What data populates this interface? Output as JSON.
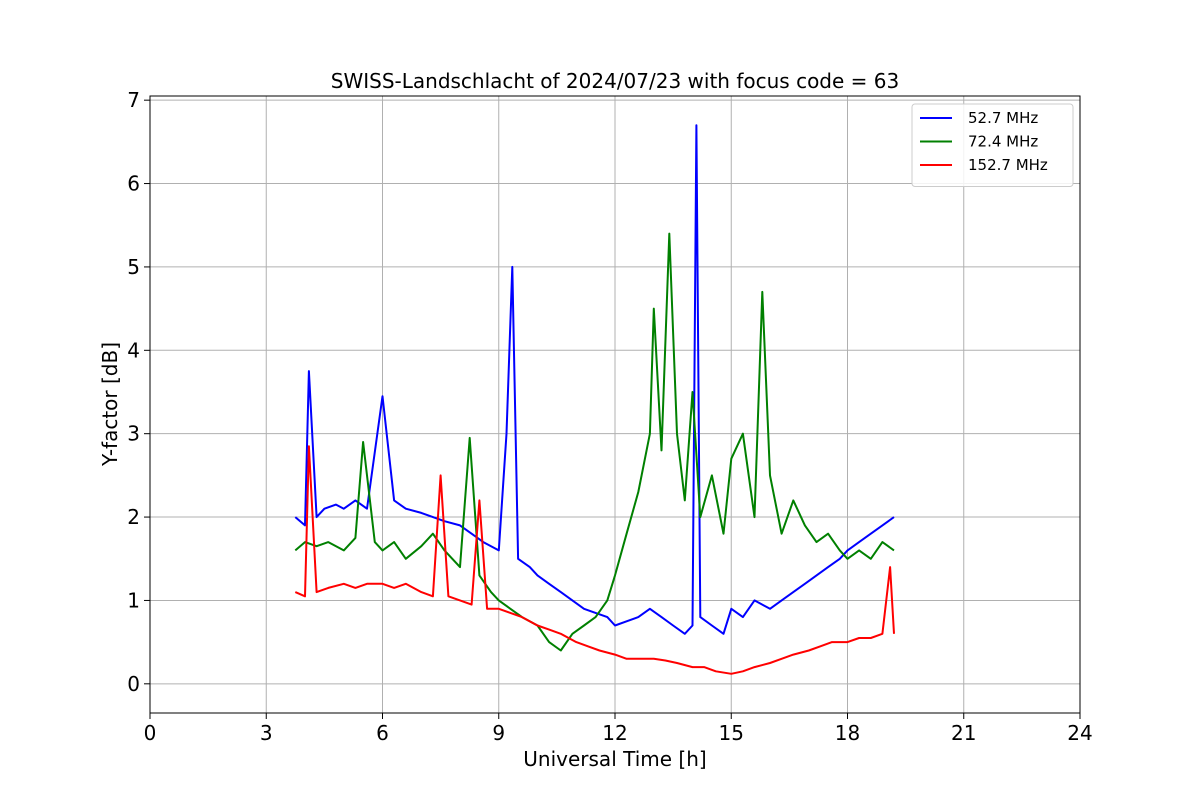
{
  "chart_data": {
    "type": "line",
    "title": "SWISS-Landschlacht of 2024/07/23 with focus code = 63",
    "xlabel": "Universal Time [h]",
    "ylabel": "Y-factor [dB]",
    "xlim": [
      0,
      24
    ],
    "ylim": [
      -0.35,
      7.05
    ],
    "xticks": [
      0,
      3,
      6,
      9,
      12,
      15,
      18,
      21,
      24
    ],
    "yticks": [
      0,
      1,
      2,
      3,
      4,
      5,
      6,
      7
    ],
    "grid": true,
    "legend_position": "top-right",
    "series": [
      {
        "name": "52.7 MHz",
        "color": "#0000ff",
        "x": [
          3.75,
          4.0,
          4.1,
          4.3,
          4.5,
          4.8,
          5.0,
          5.3,
          5.6,
          6.0,
          6.3,
          6.6,
          7.0,
          7.3,
          7.6,
          8.0,
          8.3,
          8.6,
          9.0,
          9.2,
          9.35,
          9.5,
          9.8,
          10.0,
          10.3,
          10.6,
          10.9,
          11.2,
          11.5,
          11.8,
          12.0,
          12.3,
          12.6,
          12.9,
          13.2,
          13.5,
          13.8,
          14.0,
          14.1,
          14.2,
          14.5,
          14.8,
          15.0,
          15.3,
          15.6,
          16.0,
          16.3,
          16.6,
          16.9,
          17.2,
          17.5,
          17.8,
          18.0,
          18.3,
          18.6,
          18.9,
          19.2
        ],
        "y": [
          2.0,
          1.9,
          3.75,
          2.0,
          2.1,
          2.15,
          2.1,
          2.2,
          2.1,
          3.45,
          2.2,
          2.1,
          2.05,
          2.0,
          1.95,
          1.9,
          1.8,
          1.7,
          1.6,
          3.0,
          5.0,
          1.5,
          1.4,
          1.3,
          1.2,
          1.1,
          1.0,
          0.9,
          0.85,
          0.8,
          0.7,
          0.75,
          0.8,
          0.9,
          0.8,
          0.7,
          0.6,
          0.7,
          6.7,
          0.8,
          0.7,
          0.6,
          0.9,
          0.8,
          1.0,
          0.9,
          1.0,
          1.1,
          1.2,
          1.3,
          1.4,
          1.5,
          1.6,
          1.7,
          1.8,
          1.9,
          2.0
        ]
      },
      {
        "name": "72.4 MHz",
        "color": "#008000",
        "x": [
          3.75,
          4.0,
          4.3,
          4.6,
          5.0,
          5.3,
          5.5,
          5.8,
          6.0,
          6.3,
          6.6,
          7.0,
          7.3,
          7.6,
          8.0,
          8.25,
          8.5,
          8.8,
          9.0,
          9.3,
          9.6,
          10.0,
          10.3,
          10.6,
          10.9,
          11.2,
          11.5,
          11.8,
          12.0,
          12.3,
          12.6,
          12.9,
          13.0,
          13.2,
          13.4,
          13.6,
          13.8,
          14.0,
          14.2,
          14.5,
          14.8,
          15.0,
          15.3,
          15.6,
          15.8,
          16.0,
          16.3,
          16.6,
          16.9,
          17.2,
          17.5,
          17.8,
          18.0,
          18.3,
          18.6,
          18.9,
          19.2
        ],
        "y": [
          1.6,
          1.7,
          1.65,
          1.7,
          1.6,
          1.75,
          2.9,
          1.7,
          1.6,
          1.7,
          1.5,
          1.65,
          1.8,
          1.6,
          1.4,
          2.95,
          1.3,
          1.1,
          1.0,
          0.9,
          0.8,
          0.7,
          0.5,
          0.4,
          0.6,
          0.7,
          0.8,
          1.0,
          1.3,
          1.8,
          2.3,
          3.0,
          4.5,
          2.8,
          5.4,
          3.0,
          2.2,
          3.5,
          2.0,
          2.5,
          1.8,
          2.7,
          3.0,
          2.0,
          4.7,
          2.5,
          1.8,
          2.2,
          1.9,
          1.7,
          1.8,
          1.6,
          1.5,
          1.6,
          1.5,
          1.7,
          1.6
        ]
      },
      {
        "name": "152.7 MHz",
        "color": "#ff0000",
        "x": [
          3.75,
          4.0,
          4.1,
          4.3,
          4.6,
          5.0,
          5.3,
          5.6,
          6.0,
          6.3,
          6.6,
          7.0,
          7.3,
          7.5,
          7.7,
          8.0,
          8.3,
          8.5,
          8.7,
          9.0,
          9.3,
          9.6,
          10.0,
          10.3,
          10.6,
          11.0,
          11.3,
          11.6,
          12.0,
          12.3,
          12.6,
          13.0,
          13.3,
          13.6,
          14.0,
          14.3,
          14.6,
          15.0,
          15.3,
          15.6,
          16.0,
          16.3,
          16.6,
          17.0,
          17.3,
          17.6,
          18.0,
          18.3,
          18.6,
          18.9,
          19.1,
          19.2
        ],
        "y": [
          1.1,
          1.05,
          2.85,
          1.1,
          1.15,
          1.2,
          1.15,
          1.2,
          1.2,
          1.15,
          1.2,
          1.1,
          1.05,
          2.5,
          1.05,
          1.0,
          0.95,
          2.2,
          0.9,
          0.9,
          0.85,
          0.8,
          0.7,
          0.65,
          0.6,
          0.5,
          0.45,
          0.4,
          0.35,
          0.3,
          0.3,
          0.3,
          0.28,
          0.25,
          0.2,
          0.2,
          0.15,
          0.12,
          0.15,
          0.2,
          0.25,
          0.3,
          0.35,
          0.4,
          0.45,
          0.5,
          0.5,
          0.55,
          0.55,
          0.6,
          1.4,
          0.6
        ]
      }
    ]
  }
}
